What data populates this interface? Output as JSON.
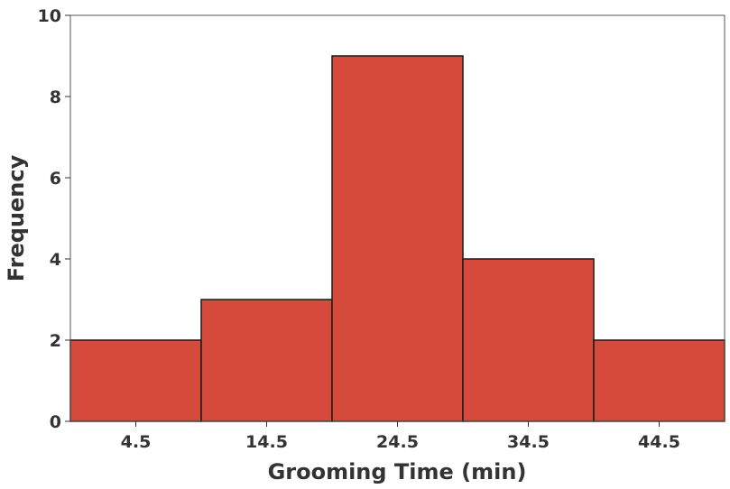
{
  "chart_data": {
    "type": "bar",
    "categories": [
      "4.5",
      "14.5",
      "24.5",
      "34.5",
      "44.5"
    ],
    "values": [
      2,
      3,
      9,
      4,
      2
    ],
    "title": "",
    "xlabel": "Grooming Time (min)",
    "ylabel": "Frequency",
    "ylim": [
      0,
      10
    ],
    "yticks": [
      0,
      2,
      4,
      6,
      8,
      10
    ],
    "bar_color": "#d64a3b",
    "grid": false,
    "legend": "none"
  }
}
